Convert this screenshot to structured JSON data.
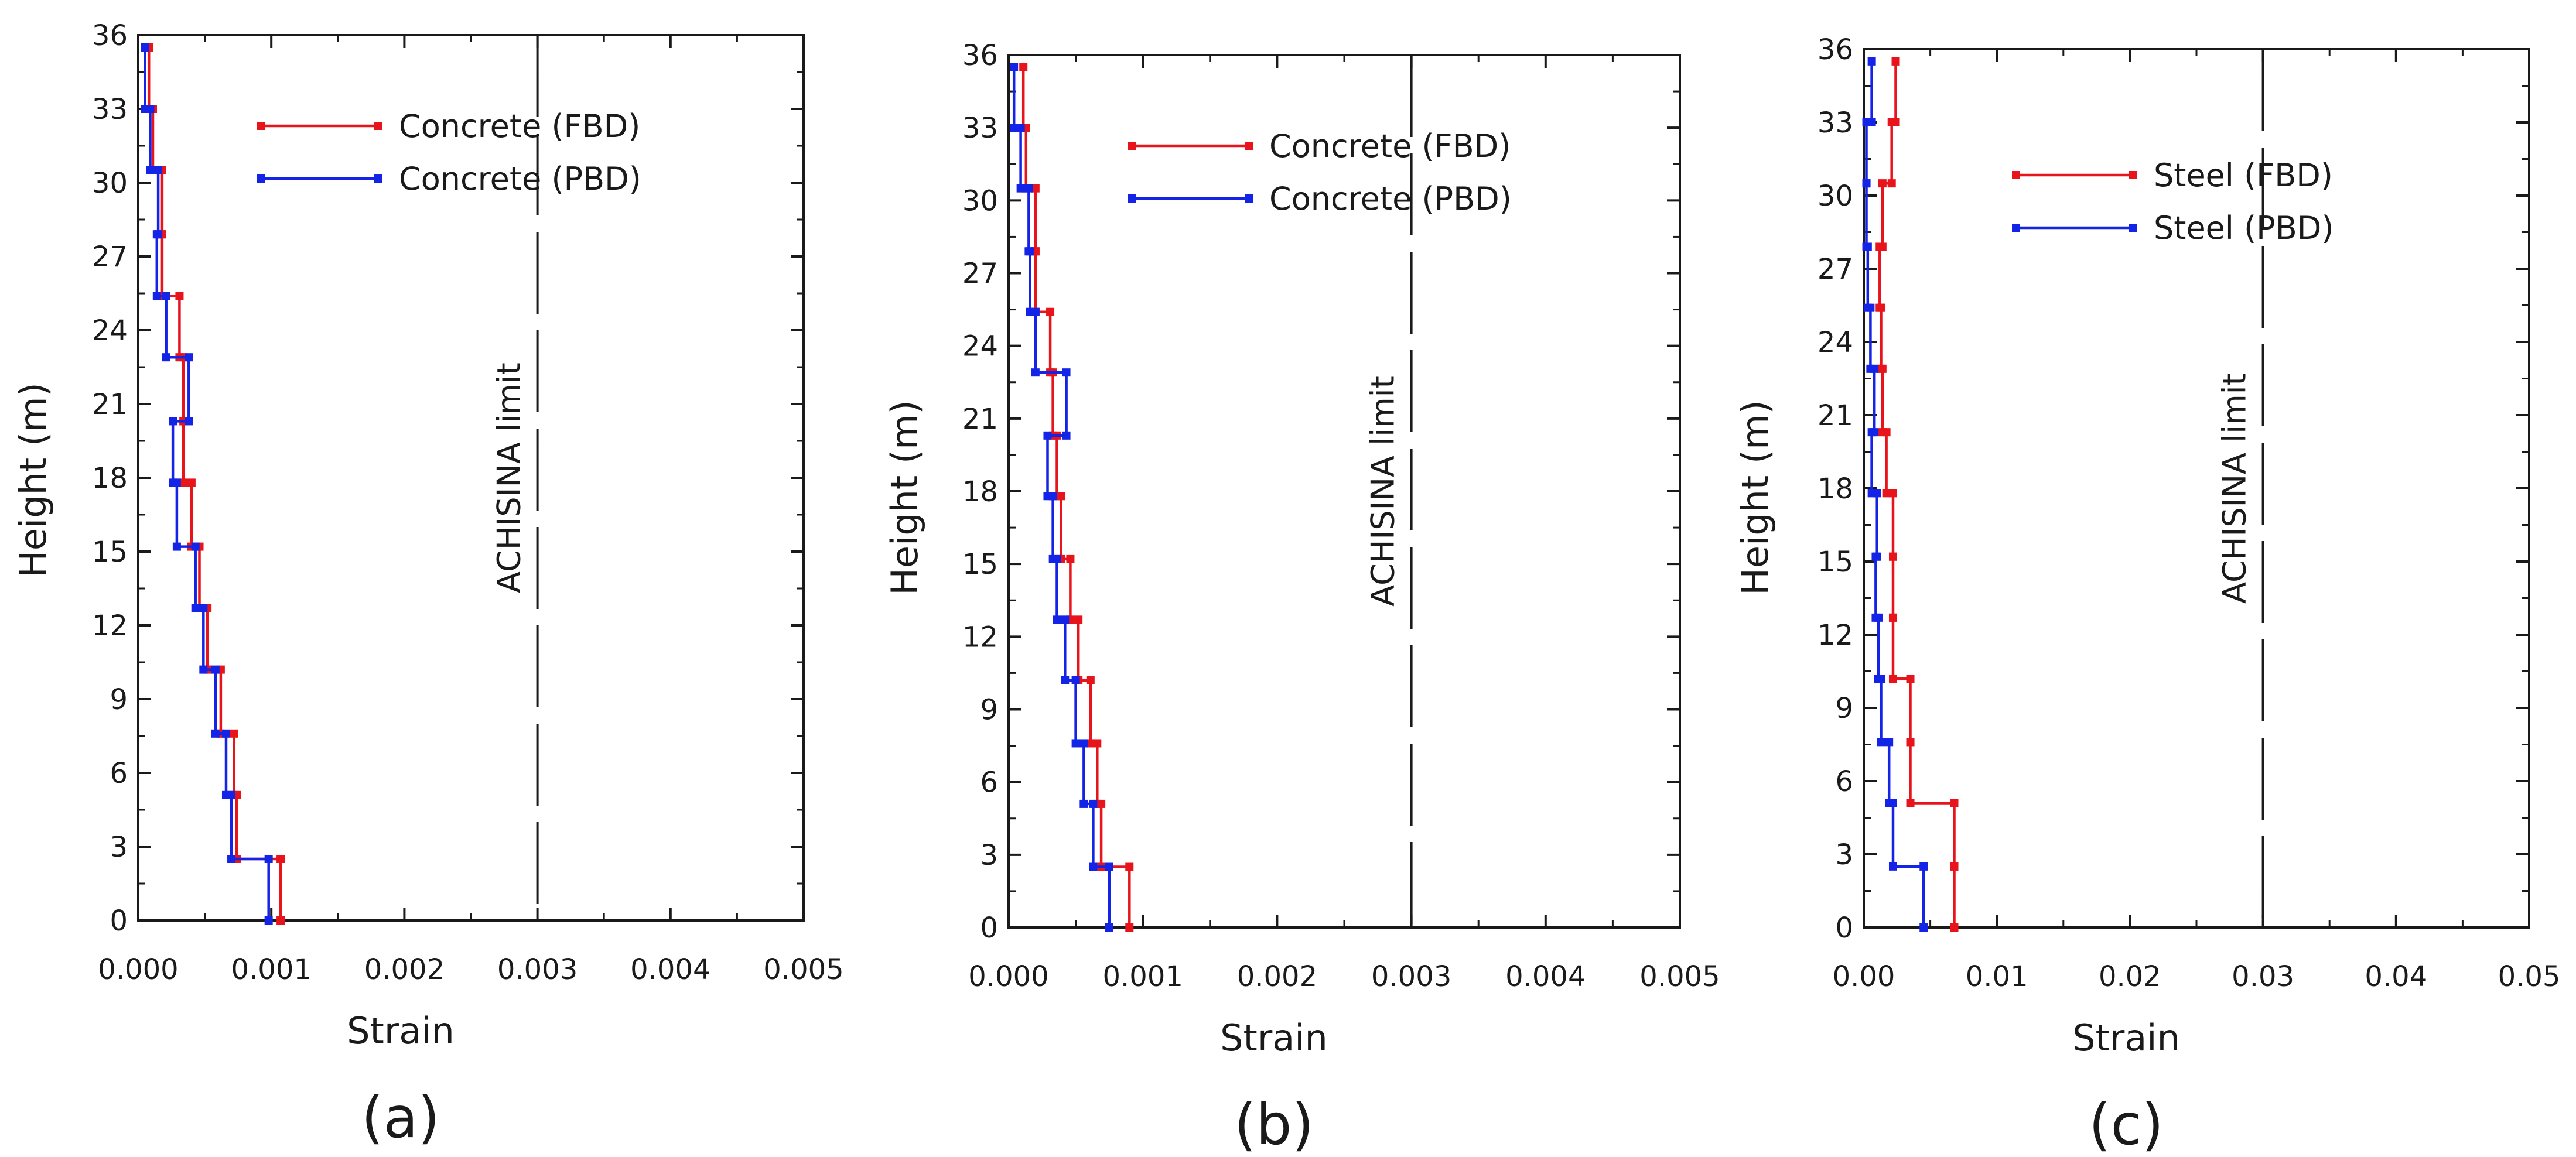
{
  "chart_data": [
    {
      "type": "line",
      "panel_label": "(a)",
      "xlabel": "Strain",
      "ylabel": "Height (m)",
      "xlim": [
        0,
        0.005
      ],
      "ylim": [
        0,
        36
      ],
      "xticks": [
        0,
        0.001,
        0.002,
        0.003,
        0.004,
        0.005
      ],
      "xtick_labels": [
        "0.000",
        "0.001",
        "0.002",
        "0.003",
        "0.004",
        "0.005"
      ],
      "yticks": [
        0,
        3,
        6,
        9,
        12,
        15,
        18,
        21,
        24,
        27,
        30,
        33,
        36
      ],
      "ytick_labels": [
        "0",
        "3",
        "6",
        "9",
        "12",
        "15",
        "18",
        "21",
        "24",
        "27",
        "30",
        "33",
        "36"
      ],
      "legend_position": "top-center",
      "limit": {
        "x": 0.003,
        "label": "ACHISINA limit"
      },
      "series": [
        {
          "name": "Concrete (FBD)",
          "color": "#e8141c",
          "points": [
            [
              0.00107,
              0
            ],
            [
              0.00107,
              2.5
            ],
            [
              0.00074,
              2.5
            ],
            [
              0.00074,
              5.1
            ],
            [
              0.00072,
              5.1
            ],
            [
              0.00072,
              7.6
            ],
            [
              0.00062,
              7.6
            ],
            [
              0.00062,
              10.2
            ],
            [
              0.00052,
              10.2
            ],
            [
              0.00052,
              12.7
            ],
            [
              0.00046,
              12.7
            ],
            [
              0.00046,
              15.2
            ],
            [
              0.0004,
              15.2
            ],
            [
              0.0004,
              17.8
            ],
            [
              0.00034,
              17.8
            ],
            [
              0.00034,
              20.3
            ],
            [
              0.00034,
              20.3
            ],
            [
              0.00034,
              22.9
            ],
            [
              0.00031,
              22.9
            ],
            [
              0.00031,
              25.4
            ],
            [
              0.00018,
              25.4
            ],
            [
              0.00018,
              27.9
            ],
            [
              0.00018,
              27.9
            ],
            [
              0.00018,
              30.5
            ],
            [
              0.00011,
              30.5
            ],
            [
              0.00011,
              33.0
            ],
            [
              8e-05,
              33.0
            ],
            [
              8e-05,
              35.5
            ]
          ]
        },
        {
          "name": "Concrete (PBD)",
          "color": "#1424e6",
          "points": [
            [
              0.00098,
              0
            ],
            [
              0.00098,
              2.5
            ],
            [
              0.0007,
              2.5
            ],
            [
              0.0007,
              5.1
            ],
            [
              0.00066,
              5.1
            ],
            [
              0.00066,
              7.6
            ],
            [
              0.00058,
              7.6
            ],
            [
              0.00058,
              10.2
            ],
            [
              0.00049,
              10.2
            ],
            [
              0.00049,
              12.7
            ],
            [
              0.00043,
              12.7
            ],
            [
              0.00043,
              15.2
            ],
            [
              0.00029,
              15.2
            ],
            [
              0.00029,
              17.8
            ],
            [
              0.00026,
              17.8
            ],
            [
              0.00026,
              20.3
            ],
            [
              0.00038,
              20.3
            ],
            [
              0.00038,
              22.9
            ],
            [
              0.00021,
              22.9
            ],
            [
              0.00021,
              25.4
            ],
            [
              0.00014,
              25.4
            ],
            [
              0.00014,
              27.9
            ],
            [
              0.00015,
              27.9
            ],
            [
              0.00015,
              30.5
            ],
            [
              9e-05,
              30.5
            ],
            [
              9e-05,
              33.0
            ],
            [
              5e-05,
              33.0
            ],
            [
              5e-05,
              35.5
            ]
          ]
        }
      ]
    },
    {
      "type": "line",
      "panel_label": "(b)",
      "xlabel": "Strain",
      "ylabel": "Height (m)",
      "xlim": [
        0,
        0.005
      ],
      "ylim": [
        0,
        36
      ],
      "xticks": [
        0,
        0.001,
        0.002,
        0.003,
        0.004,
        0.005
      ],
      "xtick_labels": [
        "0.000",
        "0.001",
        "0.002",
        "0.003",
        "0.004",
        "0.005"
      ],
      "yticks": [
        0,
        3,
        6,
        9,
        12,
        15,
        18,
        21,
        24,
        27,
        30,
        33,
        36
      ],
      "ytick_labels": [
        "0",
        "3",
        "6",
        "9",
        "12",
        "15",
        "18",
        "21",
        "24",
        "27",
        "30",
        "33",
        "36"
      ],
      "legend_position": "top-center",
      "limit": {
        "x": 0.003,
        "label": "ACHISINA limit"
      },
      "series": [
        {
          "name": "Concrete (FBD)",
          "color": "#e8141c",
          "points": [
            [
              0.0009,
              0
            ],
            [
              0.0009,
              2.5
            ],
            [
              0.00069,
              2.5
            ],
            [
              0.00069,
              5.1
            ],
            [
              0.00066,
              5.1
            ],
            [
              0.00066,
              7.6
            ],
            [
              0.00061,
              7.6
            ],
            [
              0.00061,
              10.2
            ],
            [
              0.00052,
              10.2
            ],
            [
              0.00052,
              12.7
            ],
            [
              0.00046,
              12.7
            ],
            [
              0.00046,
              15.2
            ],
            [
              0.00039,
              15.2
            ],
            [
              0.00039,
              17.8
            ],
            [
              0.00036,
              17.8
            ],
            [
              0.00036,
              20.3
            ],
            [
              0.00033,
              20.3
            ],
            [
              0.00033,
              22.9
            ],
            [
              0.00031,
              22.9
            ],
            [
              0.00031,
              25.4
            ],
            [
              0.0002,
              25.4
            ],
            [
              0.0002,
              27.9
            ],
            [
              0.0002,
              27.9
            ],
            [
              0.0002,
              30.5
            ],
            [
              0.00013,
              30.5
            ],
            [
              0.00013,
              33.0
            ],
            [
              0.00011,
              33.0
            ],
            [
              0.00011,
              35.5
            ]
          ]
        },
        {
          "name": "Concrete (PBD)",
          "color": "#1424e6",
          "points": [
            [
              0.00075,
              0
            ],
            [
              0.00075,
              2.5
            ],
            [
              0.00063,
              2.5
            ],
            [
              0.00063,
              5.1
            ],
            [
              0.00056,
              5.1
            ],
            [
              0.00056,
              7.6
            ],
            [
              0.0005,
              7.6
            ],
            [
              0.0005,
              10.2
            ],
            [
              0.00042,
              10.2
            ],
            [
              0.00042,
              12.7
            ],
            [
              0.00036,
              12.7
            ],
            [
              0.00036,
              15.2
            ],
            [
              0.00033,
              15.2
            ],
            [
              0.00033,
              17.8
            ],
            [
              0.00029,
              17.8
            ],
            [
              0.00029,
              20.3
            ],
            [
              0.00043,
              20.3
            ],
            [
              0.00043,
              22.9
            ],
            [
              0.0002,
              22.9
            ],
            [
              0.0002,
              25.4
            ],
            [
              0.00016,
              25.4
            ],
            [
              0.00016,
              27.9
            ],
            [
              0.00015,
              27.9
            ],
            [
              0.00015,
              30.5
            ],
            [
              9e-05,
              30.5
            ],
            [
              9e-05,
              33.0
            ],
            [
              4e-05,
              33.0
            ],
            [
              4e-05,
              35.5
            ]
          ]
        }
      ]
    },
    {
      "type": "line",
      "panel_label": "(c)",
      "xlabel": "Strain",
      "ylabel": "Height (m)",
      "xlim": [
        0,
        0.05
      ],
      "ylim": [
        0,
        36
      ],
      "xticks": [
        0,
        0.01,
        0.02,
        0.03,
        0.04,
        0.05
      ],
      "xtick_labels": [
        "0.00",
        "0.01",
        "0.02",
        "0.03",
        "0.04",
        "0.05"
      ],
      "yticks": [
        0,
        3,
        6,
        9,
        12,
        15,
        18,
        21,
        24,
        27,
        30,
        33,
        36
      ],
      "ytick_labels": [
        "0",
        "3",
        "6",
        "9",
        "12",
        "15",
        "18",
        "21",
        "24",
        "27",
        "30",
        "33",
        "36"
      ],
      "legend_position": "top-center",
      "limit": {
        "x": 0.03,
        "label": "ACHISINA limit"
      },
      "series": [
        {
          "name": "Steel (FBD)",
          "color": "#e8141c",
          "points": [
            [
              0.0068,
              0
            ],
            [
              0.0068,
              2.5
            ],
            [
              0.0068,
              2.5
            ],
            [
              0.0068,
              5.1
            ],
            [
              0.0035,
              5.1
            ],
            [
              0.0035,
              7.6
            ],
            [
              0.0035,
              7.6
            ],
            [
              0.0035,
              10.2
            ],
            [
              0.0022,
              10.2
            ],
            [
              0.0022,
              12.7
            ],
            [
              0.0022,
              12.7
            ],
            [
              0.0022,
              15.2
            ],
            [
              0.0022,
              15.2
            ],
            [
              0.0022,
              17.8
            ],
            [
              0.0017,
              17.8
            ],
            [
              0.0017,
              20.3
            ],
            [
              0.0014,
              20.3
            ],
            [
              0.0014,
              22.9
            ],
            [
              0.0013,
              22.9
            ],
            [
              0.0013,
              25.4
            ],
            [
              0.0012,
              25.4
            ],
            [
              0.0012,
              27.9
            ],
            [
              0.0014,
              27.9
            ],
            [
              0.0014,
              30.5
            ],
            [
              0.0021,
              30.5
            ],
            [
              0.0021,
              33.0
            ],
            [
              0.0024,
              33.0
            ],
            [
              0.0024,
              35.5
            ]
          ]
        },
        {
          "name": "Steel (PBD)",
          "color": "#1424e6",
          "points": [
            [
              0.0045,
              0
            ],
            [
              0.0045,
              2.5
            ],
            [
              0.0022,
              2.5
            ],
            [
              0.0022,
              5.1
            ],
            [
              0.0019,
              5.1
            ],
            [
              0.0019,
              7.6
            ],
            [
              0.0013,
              7.6
            ],
            [
              0.0013,
              10.2
            ],
            [
              0.0011,
              10.2
            ],
            [
              0.0011,
              12.7
            ],
            [
              0.0009,
              12.7
            ],
            [
              0.0009,
              15.2
            ],
            [
              0.001,
              15.2
            ],
            [
              0.001,
              17.8
            ],
            [
              0.0006,
              17.8
            ],
            [
              0.0006,
              20.3
            ],
            [
              0.0008,
              20.3
            ],
            [
              0.0008,
              22.9
            ],
            [
              0.0005,
              22.9
            ],
            [
              0.0005,
              25.4
            ],
            [
              0.0003,
              25.4
            ],
            [
              0.0003,
              27.9
            ],
            [
              0.0002,
              27.9
            ],
            [
              0.0002,
              30.5
            ],
            [
              0.0002,
              30.5
            ],
            [
              0.0002,
              33.0
            ],
            [
              0.0006,
              33.0
            ],
            [
              0.0006,
              35.5
            ]
          ]
        }
      ]
    }
  ]
}
